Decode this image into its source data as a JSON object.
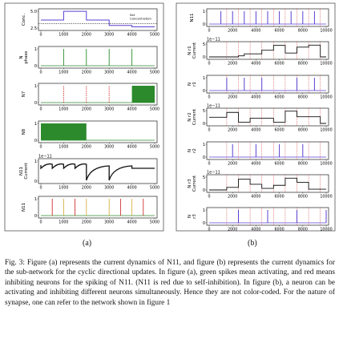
{
  "panel_a": {
    "label": "(a)",
    "xticks": [
      "0",
      "1000",
      "2000",
      "3000",
      "4000",
      "5000"
    ],
    "subplots": [
      {
        "name": "conc",
        "ylabel": "Conc.",
        "yticks": [
          "5.0",
          "2.5"
        ],
        "legend": [
          "Set",
          "Concentration"
        ],
        "series": [
          {
            "kind": "step",
            "color": "#6a3fb5",
            "points": [
              [
                0,
                3.9
              ],
              [
                1000,
                6.3
              ],
              [
                2000,
                3.9
              ],
              [
                3000,
                2.4
              ],
              [
                4000,
                2.0
              ],
              [
                5000,
                2.0
              ]
            ]
          }
        ],
        "dashed_level": 2.9,
        "ylim": [
          1,
          7
        ]
      },
      {
        "name": "n-phase",
        "ylabel": "N phase",
        "yticks": [
          "1",
          "0"
        ],
        "spikes": [
          {
            "x": [
              1000,
              2000,
              3000,
              4000
            ],
            "color": "#2c8a2c"
          }
        ],
        "ylim": [
          0,
          1
        ]
      },
      {
        "name": "n7",
        "ylabel": "N7",
        "yticks": [
          "1",
          "0"
        ],
        "spikes": [
          {
            "x": [
              1000,
              2000,
              3000
            ],
            "color": "#d03030",
            "dashed": true
          }
        ],
        "filled": [
          [
            4000,
            5000
          ]
        ],
        "ylim": [
          0,
          1
        ]
      },
      {
        "name": "n8",
        "ylabel": "N8",
        "yticks": [
          "1",
          "0"
        ],
        "filled": [
          [
            0,
            2000
          ]
        ],
        "ylim": [
          0,
          1
        ]
      },
      {
        "name": "n11-current",
        "ylabel": "N11 Current",
        "yticks": [
          "1",
          "0"
        ],
        "exp": "1e−11",
        "ylim": [
          0,
          1
        ]
      },
      {
        "name": "n11",
        "ylabel": "N11",
        "yticks": [
          "1",
          "0"
        ],
        "spikes": [
          {
            "x": [
              500,
              1500,
              3500,
              4500
            ],
            "color": "#d03030"
          },
          {
            "x": [
              1000,
              2000,
              3000,
              4000
            ],
            "color": "#d4b040"
          }
        ],
        "ylim": [
          0,
          1
        ]
      }
    ]
  },
  "panel_b": {
    "label": "(b)",
    "xticks": [
      "0",
      "2000",
      "4000",
      "6000",
      "8000",
      "10000"
    ],
    "subplots": [
      {
        "name": "n11",
        "ylabel": "N11",
        "yticks": [
          "1",
          "0"
        ],
        "kind": "spike",
        "x": [
          1000,
          2000,
          3000,
          4000,
          5000,
          6000,
          7000,
          8000,
          9000
        ]
      },
      {
        "name": "nr1-current",
        "ylabel": "N r1 Current",
        "yticks": [
          "5",
          "0"
        ],
        "exp": "1e−11",
        "kind": "current",
        "levels": [
          [
            0,
            0
          ],
          [
            2500,
            0.4
          ],
          [
            3000,
            1.2
          ],
          [
            4500,
            2.6
          ],
          [
            5500,
            4.5
          ],
          [
            6500,
            1.5
          ],
          [
            7500,
            3.8
          ],
          [
            8500,
            4.6
          ],
          [
            9500,
            0
          ]
        ]
      },
      {
        "name": "nr1",
        "ylabel": "N r1",
        "yticks": [
          "1",
          "0"
        ],
        "kind": "spike",
        "x": [
          1500,
          3000,
          4500,
          7500,
          9000
        ]
      },
      {
        "name": "nr2-current",
        "ylabel": "N r2 Current",
        "yticks": [
          "5",
          "0"
        ],
        "exp": "1e−11",
        "kind": "current",
        "levels": [
          [
            0,
            2.4
          ],
          [
            1500,
            4.3
          ],
          [
            2500,
            0.5
          ],
          [
            3500,
            2.0
          ],
          [
            5500,
            0.5
          ],
          [
            6500,
            4.8
          ],
          [
            7500,
            2.6
          ],
          [
            9500,
            0
          ]
        ]
      },
      {
        "name": "nr2",
        "ylabel": "N r2",
        "yticks": [
          "1",
          "0"
        ],
        "kind": "spike",
        "x": [
          2000,
          4000,
          6000,
          8000
        ]
      },
      {
        "name": "nr3-current",
        "ylabel": "N r3 Current",
        "yticks": [
          "5",
          "0"
        ],
        "exp": "1e−11",
        "kind": "current",
        "levels": [
          [
            0,
            0
          ],
          [
            1500,
            1.0
          ],
          [
            2500,
            4.2
          ],
          [
            3500,
            2.2
          ],
          [
            4500,
            0.6
          ],
          [
            5500,
            1.8
          ],
          [
            6500,
            4.6
          ],
          [
            7500,
            3.0
          ],
          [
            8500,
            0.3
          ]
        ]
      },
      {
        "name": "nr3",
        "ylabel": "N r3",
        "yticks": [
          "1",
          "0"
        ],
        "kind": "spike",
        "x": [
          2500,
          5000,
          7500,
          10000
        ]
      }
    ]
  },
  "caption": "Fig. 3: Figure (a) represents the current dynamics of N11, and figure (b) represents the current dynamics for the sub-network for the cyclic directional updates. In figure (a), green spikes mean activating, and red means inhibiting neurons for the spiking of N11. (N11 is red due to self-inhibition). In figure (b), a neuron can be activating and inhibiting different neurons simultaneously. Hence they are not color-coded. For the nature of synapse, one can refer to the network shown in figure 1",
  "colors": {
    "purple": "#5b3fd0",
    "green": "#2c8a2c",
    "red": "#d03030",
    "yellow": "#d4b040",
    "black": "#111111"
  }
}
